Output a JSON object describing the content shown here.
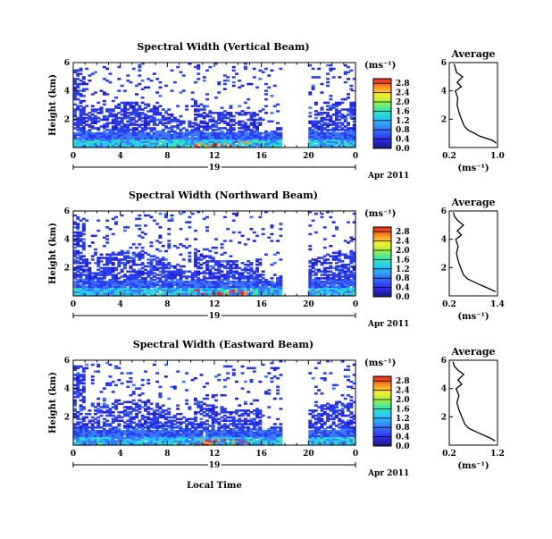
{
  "figure": {
    "date_label": "Apr 2011",
    "day_label": "19",
    "xlabel": "Local Time"
  },
  "chart_data": [
    {
      "type": "heatmap",
      "title": "Spectral Width (Vertical Beam)",
      "ylabel": "Height (km)",
      "x_ticks": [
        "0",
        "4",
        "8",
        "12",
        "16",
        "20",
        "0"
      ],
      "xlim": [
        0,
        24
      ],
      "y_ticks": [
        "2",
        "4",
        "6"
      ],
      "ylim": [
        0,
        6
      ],
      "no_data_hours": [
        17.6,
        19.8
      ],
      "colorbar": {
        "unit": "(ms⁻¹)",
        "ticks": [
          "0.0",
          "0.4",
          "0.8",
          "1.2",
          "1.6",
          "2.0",
          "2.4",
          "2.8"
        ],
        "range": [
          0,
          3.0
        ]
      },
      "average_profile": {
        "title": "Average",
        "xlabel": "(ms⁻¹)",
        "x_ticks": [
          "0.2",
          "1.0"
        ],
        "xlim": [
          0.2,
          1.0
        ],
        "y_ticks": [
          "2",
          "4",
          "6"
        ],
        "ylim": [
          0,
          6
        ],
        "height_km": [
          0.3,
          0.5,
          0.8,
          1.0,
          1.2,
          1.5,
          2.0,
          2.5,
          3.0,
          3.5,
          4.0,
          4.3,
          4.6,
          5.0,
          5.3,
          5.6,
          5.9
        ],
        "width_ms": [
          0.98,
          0.92,
          0.7,
          0.62,
          0.52,
          0.45,
          0.4,
          0.36,
          0.33,
          0.34,
          0.3,
          0.4,
          0.33,
          0.42,
          0.32,
          0.3,
          0.28
        ]
      }
    },
    {
      "type": "heatmap",
      "title": "Spectral Width (Northward Beam)",
      "ylabel": "Height (km)",
      "x_ticks": [
        "0",
        "4",
        "8",
        "12",
        "16",
        "20",
        "0"
      ],
      "xlim": [
        0,
        24
      ],
      "y_ticks": [
        "2",
        "4",
        "6"
      ],
      "ylim": [
        0,
        6
      ],
      "no_data_hours": [
        17.6,
        19.8
      ],
      "colorbar": {
        "unit": "(ms⁻¹)",
        "ticks": [
          "0.0",
          "0.4",
          "0.8",
          "1.2",
          "1.6",
          "2.0",
          "2.4",
          "2.8"
        ],
        "range": [
          0,
          3.0
        ]
      },
      "average_profile": {
        "title": "Average",
        "xlabel": "(ms⁻¹)",
        "x_ticks": [
          "0.2",
          "1.4"
        ],
        "xlim": [
          0.2,
          1.4
        ],
        "y_ticks": [
          "2",
          "4",
          "6"
        ],
        "ylim": [
          0,
          6
        ],
        "height_km": [
          0.3,
          0.5,
          0.8,
          1.0,
          1.2,
          1.5,
          2.0,
          2.5,
          3.0,
          3.5,
          4.0,
          4.3,
          4.6,
          5.0,
          5.3,
          5.6,
          5.9
        ],
        "width_ms": [
          1.35,
          1.2,
          0.95,
          0.8,
          0.65,
          0.55,
          0.48,
          0.42,
          0.38,
          0.42,
          0.36,
          0.5,
          0.4,
          0.55,
          0.42,
          0.33,
          0.3
        ]
      }
    },
    {
      "type": "heatmap",
      "title": "Spectral Width (Eastward Beam)",
      "ylabel": "Height (km)",
      "x_ticks": [
        "0",
        "4",
        "8",
        "12",
        "16",
        "20",
        "0"
      ],
      "xlim": [
        0,
        24
      ],
      "y_ticks": [
        "2",
        "4",
        "6"
      ],
      "ylim": [
        0,
        6
      ],
      "no_data_hours": [
        17.6,
        19.8
      ],
      "colorbar": {
        "unit": "(ms⁻¹)",
        "ticks": [
          "0.0",
          "0.4",
          "0.8",
          "1.2",
          "1.6",
          "2.0",
          "2.4",
          "2.8"
        ],
        "range": [
          0,
          3.0
        ]
      },
      "average_profile": {
        "title": "Average",
        "xlabel": "(ms⁻¹)",
        "x_ticks": [
          "0.2",
          "1.2"
        ],
        "xlim": [
          0.2,
          1.2
        ],
        "y_ticks": [
          "2",
          "4",
          "6"
        ],
        "ylim": [
          0,
          6
        ],
        "height_km": [
          0.3,
          0.5,
          0.8,
          1.0,
          1.2,
          1.5,
          2.0,
          2.5,
          3.0,
          3.5,
          4.0,
          4.3,
          4.6,
          5.0,
          5.3,
          5.6,
          5.9
        ],
        "width_ms": [
          1.15,
          1.05,
          0.85,
          0.72,
          0.6,
          0.52,
          0.46,
          0.4,
          0.36,
          0.4,
          0.34,
          0.46,
          0.38,
          0.5,
          0.38,
          0.3,
          0.28
        ]
      }
    }
  ]
}
